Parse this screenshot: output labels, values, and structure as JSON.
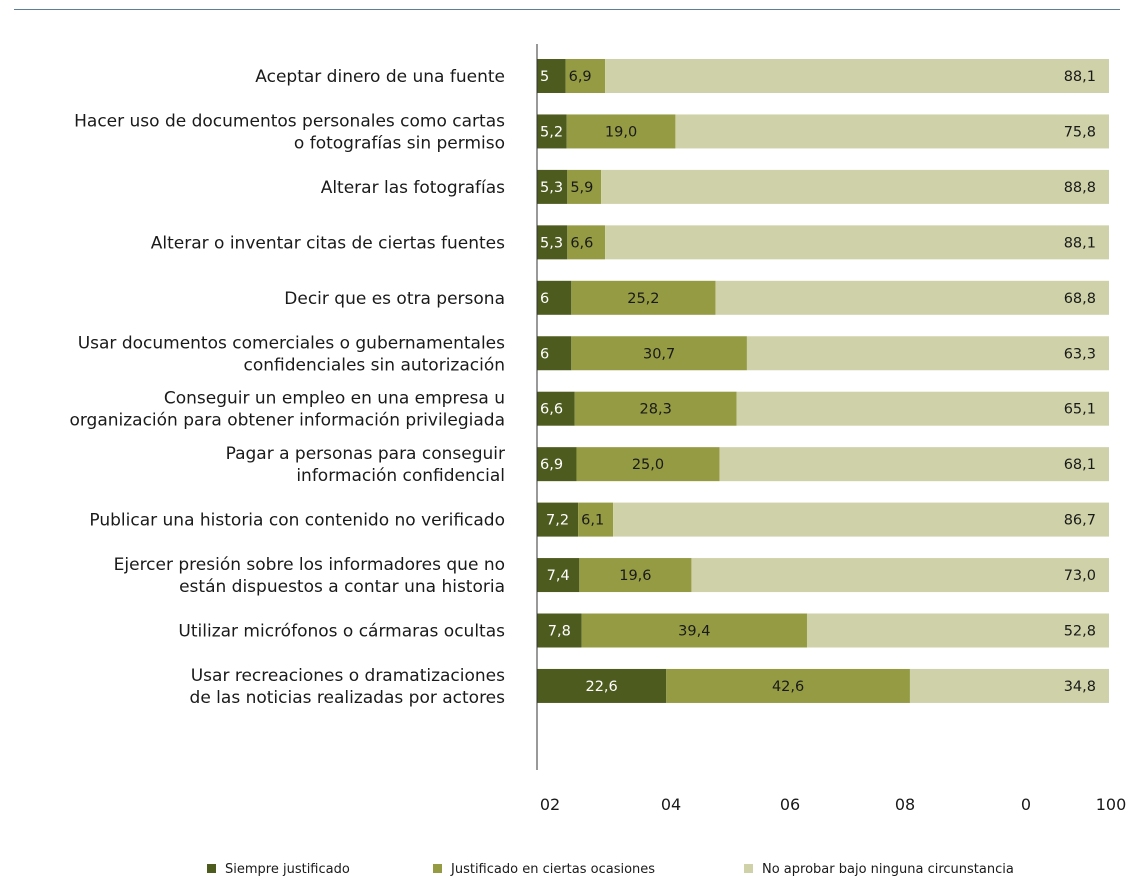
{
  "chart_data": {
    "type": "bar",
    "orientation": "horizontal",
    "stacked": true,
    "categories": [
      [
        "Aceptar dinero de una fuente"
      ],
      [
        "Hacer uso de documentos personales como cartas",
        "o fotografías sin permiso"
      ],
      [
        "Alterar las fotografías"
      ],
      [
        "Alterar o inventar citas de ciertas fuentes"
      ],
      [
        "Decir que es otra persona"
      ],
      [
        "Usar documentos comerciales o gubernamentales",
        "confidenciales sin autorización"
      ],
      [
        "Conseguir un empleo en una empresa u",
        "organización para obtener información privilegiada"
      ],
      [
        "Pagar a personas para conseguir",
        "información confidencial"
      ],
      [
        "Publicar una historia con contenido no verificado"
      ],
      [
        "Ejercer presión sobre los informadores que no",
        "están dispuestos a contar una historia"
      ],
      [
        "Utilizar micrófonos o cármaras ocultas"
      ],
      [
        "Usar recreaciones o dramatizaciones",
        "de las noticias realizadas por  actores"
      ]
    ],
    "series": [
      {
        "name": "Siempre justificado",
        "color": "#4e5b1f",
        "label_color": "#ffffff",
        "values": [
          5,
          5.2,
          5.3,
          5.3,
          6,
          6,
          6.6,
          6.9,
          7.2,
          7.4,
          7.8,
          22.6
        ],
        "labels": [
          "5",
          "5,2",
          "5,3",
          "5,3",
          "6",
          "6",
          "6,6",
          "6,9",
          "7,2",
          "7,4",
          "7,8",
          "22,6"
        ]
      },
      {
        "name": "Justificado en ciertas ocasiones",
        "color": "#949b43",
        "label_color": "#1a1a1a",
        "values": [
          6.9,
          19.0,
          5.9,
          6.6,
          25.2,
          30.7,
          28.3,
          25.0,
          6.1,
          19.6,
          39.4,
          42.6
        ],
        "labels": [
          "6,9",
          "19,0",
          "5,9",
          "6,6",
          "25,2",
          "30,7",
          "28,3",
          "25,0",
          "6,1",
          "19,6",
          "39,4",
          "42,6"
        ]
      },
      {
        "name": "No aprobar bajo ninguna circunstancia",
        "color": "#cfd2a8",
        "label_color": "#1a1a1a",
        "values": [
          88.1,
          75.8,
          88.8,
          88.1,
          68.8,
          63.3,
          65.1,
          68.1,
          86.7,
          73.0,
          52.8,
          34.8
        ],
        "labels": [
          "88,1",
          "75,8",
          "88,8",
          "88,1",
          "68,8",
          "63,3",
          "65,1",
          "68,1",
          "86,7",
          "73,0",
          "52,8",
          "34,8"
        ]
      }
    ],
    "xlim": [
      0,
      100
    ],
    "x_tick_labels": [
      "02",
      "04",
      "06",
      "08",
      "0",
      "100"
    ],
    "legend_position": "bottom",
    "grid": false
  }
}
